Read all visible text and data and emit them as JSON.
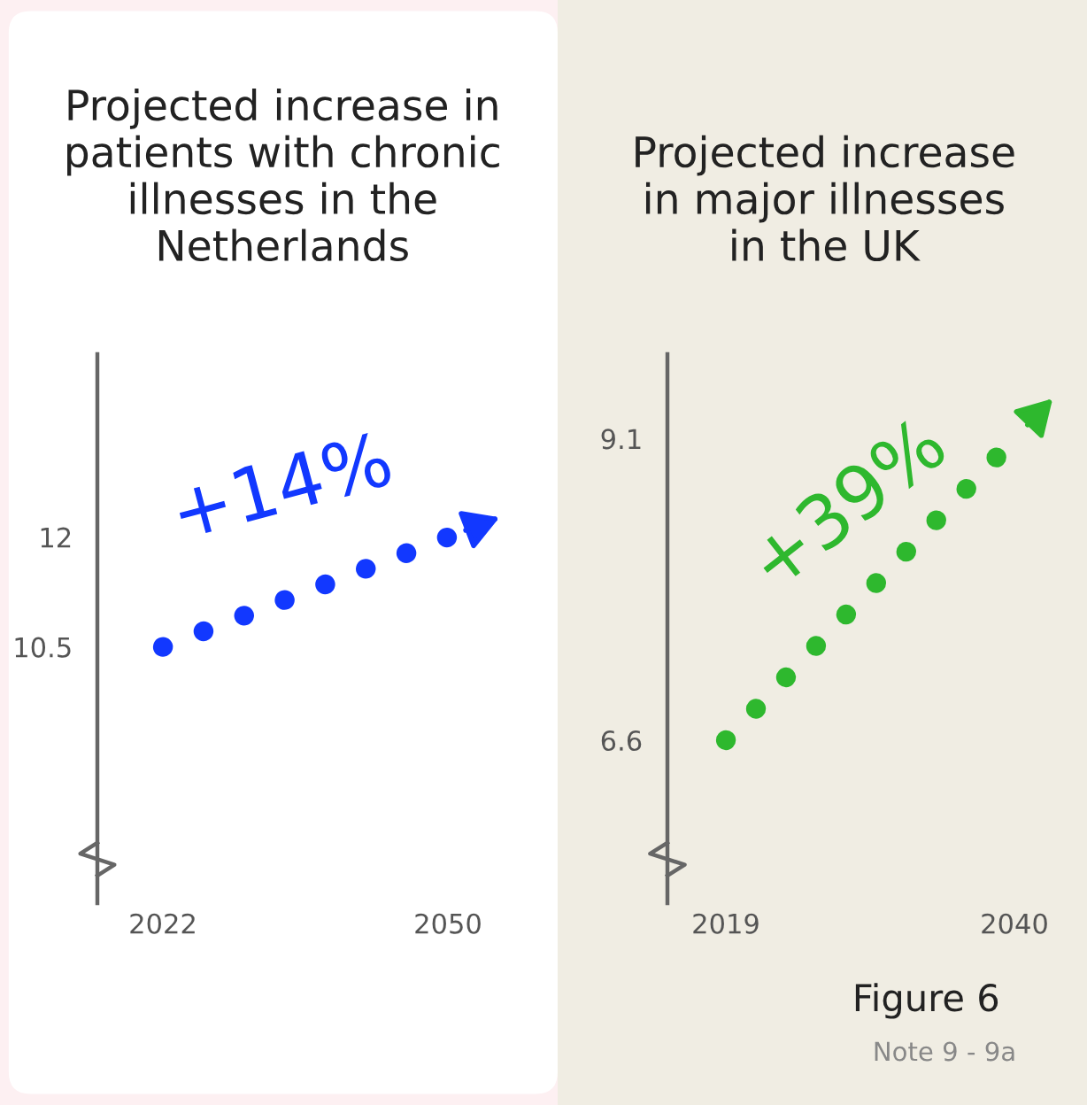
{
  "chart_data": [
    {
      "type": "line",
      "title": "Projected increase in\npatients with chronic\nillnesses in the\nNetherlands",
      "x": [
        2022,
        2050
      ],
      "series": [
        {
          "color": "#1238ff",
          "values": [
            10.5,
            12
          ]
        }
      ],
      "xlim": [
        2022,
        2050
      ],
      "xticks": [
        2022,
        2050
      ],
      "ylim": [
        7,
        14.5
      ],
      "yticks": [
        10.5,
        12
      ],
      "line_style": "dotted",
      "grid": false,
      "annotations": [
        "+14%"
      ]
    },
    {
      "type": "line",
      "title": "Projected increase\nin major illnesses\nin the UK",
      "x": [
        2019,
        2040
      ],
      "series": [
        {
          "color": "#2eb82e",
          "values": [
            6.6,
            9.1
          ]
        }
      ],
      "xlim": [
        2019,
        2040
      ],
      "xticks": [
        2019,
        2040
      ],
      "ylim": [
        5.25,
        9.8
      ],
      "yticks": [
        6.6,
        9.1
      ],
      "line_style": "dotted",
      "grid": false,
      "annotations": [
        "+39%",
        "Figure 6",
        "Note 9 - 9a"
      ]
    }
  ]
}
